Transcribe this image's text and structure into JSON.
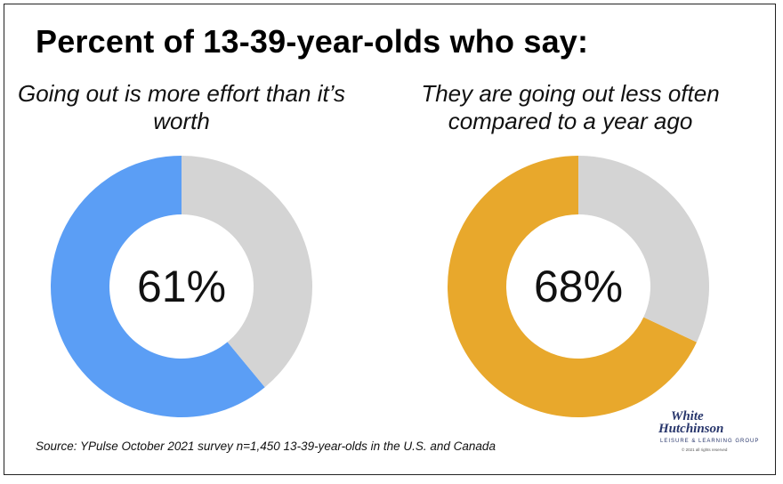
{
  "title": "Percent of 13-39-year-olds who say:",
  "chart_data": [
    {
      "type": "pie",
      "title": "Going out is more effort than it’s worth",
      "center_label": "61%",
      "values": [
        61,
        39
      ],
      "colors": [
        "#5b9ef5",
        "#d4d4d4"
      ]
    },
    {
      "type": "pie",
      "title": "They are going out less often compared to a year ago",
      "center_label": "68%",
      "values": [
        68,
        32
      ],
      "colors": [
        "#e8a82c",
        "#d4d4d4"
      ]
    }
  ],
  "source": "Source: YPulse  October 2021 survey n=1,450 13-39-year-olds in the U.S. and Canada",
  "logo": {
    "line1": "White",
    "line2": "Hutchinson",
    "line3": "LEISURE & LEARNING GROUP",
    "line4": "© 2021 all rights reserved"
  }
}
